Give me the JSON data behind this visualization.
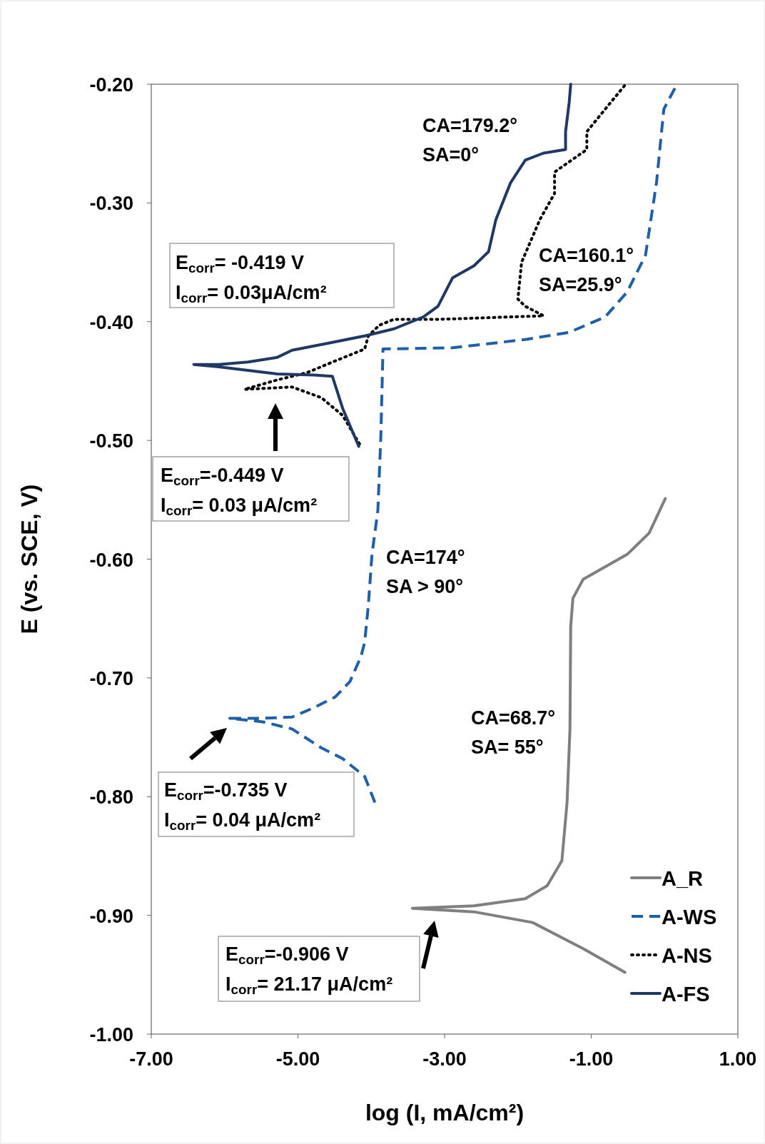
{
  "chart_data": {
    "type": "line",
    "xlabel": "log (I, mA/cm²)",
    "ylabel": "E (vs. SCE, V)",
    "xlim": [
      -7,
      1
    ],
    "ylim": [
      -1,
      -0.2
    ],
    "xticks": [
      {
        "value": -7,
        "label": "-7.00"
      },
      {
        "value": -5,
        "label": "-5.00"
      },
      {
        "value": -3,
        "label": "-3.00"
      },
      {
        "value": -1,
        "label": "-1.00"
      },
      {
        "value": 1,
        "label": "1.00"
      }
    ],
    "yticks": [
      {
        "value": -1,
        "label": "-1.00"
      },
      {
        "value": -0.9,
        "label": "-0.90"
      },
      {
        "value": -0.8,
        "label": "-0.80"
      },
      {
        "value": -0.7,
        "label": "-0.70"
      },
      {
        "value": -0.6,
        "label": "-0.60"
      },
      {
        "value": -0.5,
        "label": "-0.50"
      },
      {
        "value": -0.4,
        "label": "-0.40"
      },
      {
        "value": -0.3,
        "label": "-0.30"
      },
      {
        "value": -0.2,
        "label": "-0.20"
      }
    ],
    "grid": false,
    "legend": "bottom right",
    "marker": "none",
    "series": [
      {
        "name": "A_R",
        "color": "#7f7f7f",
        "line_style": "solid",
        "x": [
          -0.54,
          -1.11,
          -1.8,
          -2.6,
          -3.44,
          -2.6,
          -1.9,
          -1.6,
          -1.4,
          -1.33,
          -1.29,
          -1.28,
          -1.25,
          -1.11,
          -0.51,
          -0.21,
          0.01
        ],
        "values": [
          -0.948,
          -0.928,
          -0.906,
          -0.897,
          -0.894,
          -0.892,
          -0.886,
          -0.875,
          -0.854,
          -0.805,
          -0.743,
          -0.657,
          -0.633,
          -0.617,
          -0.596,
          -0.578,
          -0.549
        ]
      },
      {
        "name": "A-WS",
        "color": "#1f5fa8",
        "line_style": "dashed",
        "x": [
          -3.95,
          -4.09,
          -4.39,
          -4.68,
          -5.08,
          -5.48,
          -5.93,
          -5.48,
          -5.08,
          -4.78,
          -4.49,
          -4.29,
          -4.14,
          -4.09,
          -4.04,
          -3.99,
          -3.91,
          -3.87,
          -3.84,
          -2.89,
          -1.9,
          -1.3,
          -0.81,
          -0.51,
          -0.26,
          -0.11,
          -0.01,
          0.17
        ],
        "values": [
          -0.805,
          -0.783,
          -0.768,
          -0.759,
          -0.743,
          -0.737,
          -0.734,
          -0.734,
          -0.733,
          -0.725,
          -0.716,
          -0.703,
          -0.682,
          -0.67,
          -0.639,
          -0.596,
          -0.559,
          -0.498,
          -0.423,
          -0.422,
          -0.415,
          -0.409,
          -0.396,
          -0.375,
          -0.344,
          -0.283,
          -0.221,
          -0.2
        ]
      },
      {
        "name": "A-NS",
        "color": "#000000",
        "line_style": "dotted",
        "x": [
          -4.16,
          -4.39,
          -4.68,
          -5.08,
          -5.73,
          -5.28,
          -4.88,
          -4.49,
          -4.09,
          -4.04,
          -3.89,
          -3.69,
          -3.09,
          -2.1,
          -1.65,
          -1.9,
          -2.0,
          -1.95,
          -1.7,
          -1.5,
          -1.5,
          -1.2,
          -1.06,
          -1.06,
          -0.81,
          -0.53
        ],
        "values": [
          -0.503,
          -0.479,
          -0.464,
          -0.455,
          -0.457,
          -0.449,
          -0.443,
          -0.433,
          -0.423,
          -0.412,
          -0.403,
          -0.398,
          -0.398,
          -0.396,
          -0.395,
          -0.387,
          -0.381,
          -0.35,
          -0.314,
          -0.292,
          -0.274,
          -0.261,
          -0.255,
          -0.24,
          -0.221,
          -0.2
        ]
      },
      {
        "name": "A-FS",
        "color": "#1f3864",
        "line_style": "solid",
        "x": [
          -4.17,
          -4.39,
          -4.53,
          -4.78,
          -5.28,
          -5.68,
          -6.08,
          -6.42,
          -6.08,
          -5.68,
          -5.28,
          -5.08,
          -4.58,
          -4.09,
          -3.69,
          -3.29,
          -3.09,
          -2.89,
          -2.6,
          -2.4,
          -2.3,
          -2.1,
          -1.9,
          -1.65,
          -1.35,
          -1.35,
          -1.3,
          -1.28
        ],
        "values": [
          -0.505,
          -0.473,
          -0.446,
          -0.445,
          -0.444,
          -0.441,
          -0.438,
          -0.436,
          -0.436,
          -0.434,
          -0.43,
          -0.424,
          -0.418,
          -0.412,
          -0.406,
          -0.396,
          -0.387,
          -0.363,
          -0.353,
          -0.341,
          -0.314,
          -0.283,
          -0.264,
          -0.258,
          -0.255,
          -0.24,
          -0.215,
          -0.2
        ]
      }
    ],
    "annotations": [
      "CA=179.2°",
      "SA=0°",
      "CA=160.1°",
      "SA=25.9°",
      "CA=174°",
      "SA > 90°",
      "CA=68.7°",
      "SA= 55°",
      "E$_{corr}$= -0.419 V",
      "I$_{corr}$=  0.03μA/cm²",
      "E$_{corr}$=-0.449 V",
      "I$_{corr}$= 0.03 μA/cm²",
      "E$_{corr}$=-0.735 V",
      "I$_{corr}$=  0.04 μA/cm²",
      "E$_{corr}$=-0.906 V",
      "I$_{corr}$= 21.17 μA/cm²"
    ]
  }
}
